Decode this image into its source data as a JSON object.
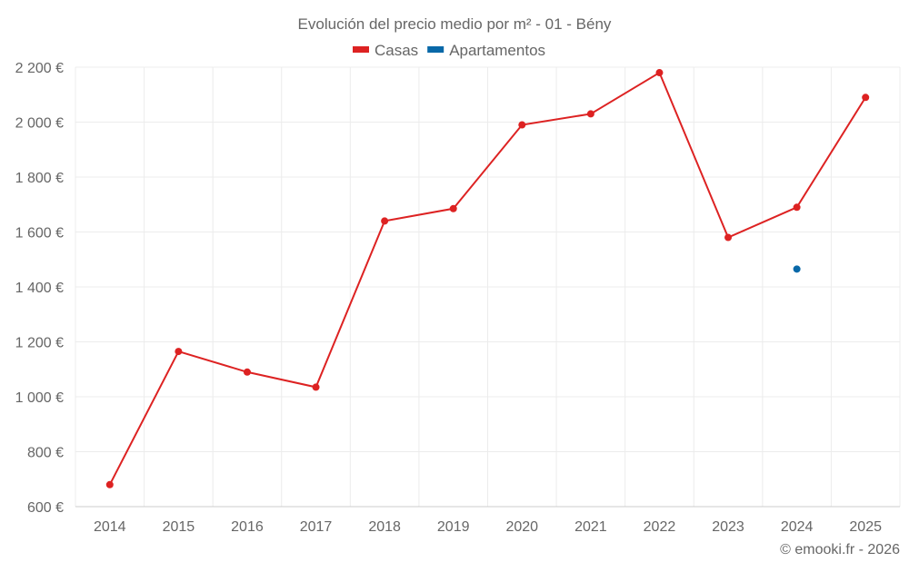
{
  "chart_data": {
    "type": "line",
    "title": "Evolución del precio medio por m² - 01 - Bény",
    "categories": [
      "2014",
      "2015",
      "2016",
      "2017",
      "2018",
      "2019",
      "2020",
      "2021",
      "2022",
      "2023",
      "2024",
      "2025"
    ],
    "series": [
      {
        "name": "Casas",
        "color": "#dd2222",
        "values": [
          680,
          1165,
          1090,
          1035,
          1640,
          1685,
          1990,
          2030,
          2180,
          1580,
          1690,
          2090
        ]
      },
      {
        "name": "Apartamentos",
        "color": "#0868a8",
        "values": [
          null,
          null,
          null,
          null,
          null,
          null,
          null,
          null,
          null,
          null,
          1465,
          null
        ]
      }
    ],
    "ylim": [
      600,
      2200
    ],
    "yticks": [
      600,
      800,
      1000,
      1200,
      1400,
      1600,
      1800,
      2000,
      2200
    ],
    "ytick_labels": [
      "600 €",
      "800 €",
      "1 000 €",
      "1 200 €",
      "1 400 €",
      "1 600 €",
      "1 800 €",
      "2 000 €",
      "2 200 €"
    ],
    "grid": true,
    "legend": "top-center",
    "credit": "© emooki.fr - 2026"
  }
}
